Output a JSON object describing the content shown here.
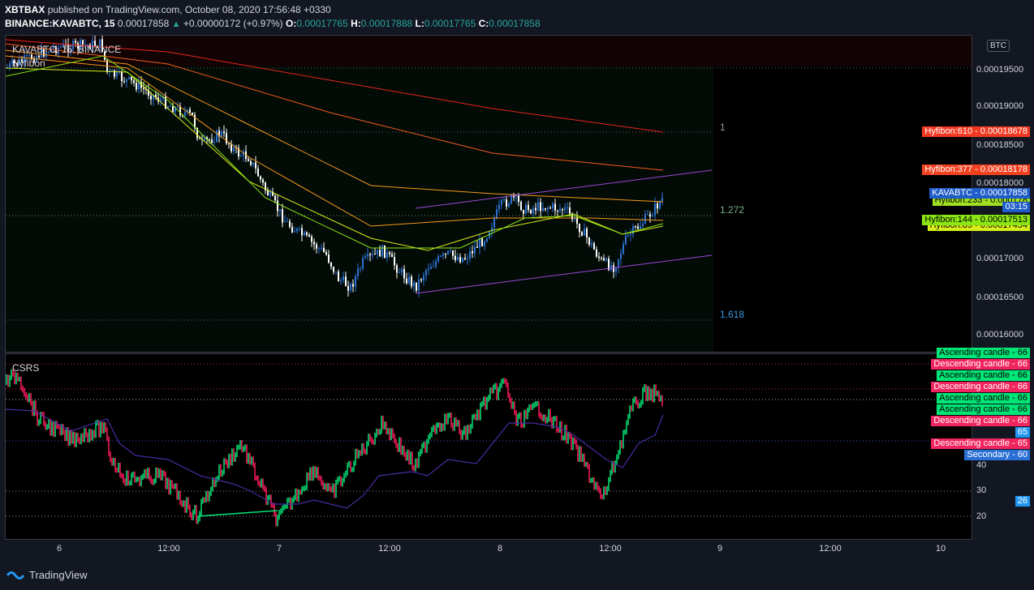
{
  "header": {
    "publisher": "XBTBAX",
    "published_text": "published on TradingView.com, October 08, 2020 17:56:48 +0330",
    "symbol": "BINANCE:KAVABTC, 15",
    "last": "0.00017858",
    "change": "+0.00000172 (+0.97%)",
    "o_label": "O:",
    "o": "0.00017765",
    "h_label": "H:",
    "h": "0.00017888",
    "l_label": "L:",
    "l": "0.00017765",
    "c_label": "C:",
    "c": "0.00017858"
  },
  "main_pane": {
    "legend_symbol": "KAVABTC, 15, BINANCE",
    "legend_indicator": "Hyfibon",
    "currency_badge": "BTC",
    "fib_levels": [
      "1",
      "1.272",
      "1.618"
    ],
    "price_ticks": [
      "0.00019500",
      "0.00019000",
      "0.00018500",
      "0.00018000",
      "0.00017000",
      "0.00016500",
      "0.00016000"
    ],
    "tags": [
      {
        "text": "Hyfibon:610 - 0.00018678",
        "bg": "#f23a22",
        "fg": "#ffffff"
      },
      {
        "text": "Hyfibon:377 - 0.00018178",
        "bg": "#f2411f",
        "fg": "#ffffff"
      },
      {
        "text": "KAVABTC - 0.00017858",
        "bg": "#1e5cc8",
        "fg": "#ffffff"
      },
      {
        "text": "03:15",
        "bg": "#1e5cc8",
        "fg": "#ffffff"
      },
      {
        "text": "Hyfibon:233 - 0.000178",
        "bg": "#a0e020",
        "fg": "#000000"
      },
      {
        "text": "Hyfibon:144 - 0.00017513",
        "bg": "#8ce614",
        "fg": "#000000"
      },
      {
        "text": "Hyfibon:89 - 0.00017454",
        "bg": "#d8ee1a",
        "fg": "#000000"
      }
    ]
  },
  "sub_pane": {
    "legend": "CSRS",
    "ticks": [
      "40",
      "30",
      "20"
    ],
    "tags": [
      {
        "text": "Ascending candle - 66",
        "bg": "#00e676",
        "fg": "#000000"
      },
      {
        "text": "Descending candle - 66",
        "bg": "#f0245e",
        "fg": "#ffffff"
      },
      {
        "text": "Ascending candle - 66",
        "bg": "#00e676",
        "fg": "#000000"
      },
      {
        "text": "Descending candle - 66",
        "bg": "#f0245e",
        "fg": "#ffffff"
      },
      {
        "text": "Ascending candle - 66",
        "bg": "#00e676",
        "fg": "#000000"
      },
      {
        "text": "Ascending candle - 66",
        "bg": "#00e676",
        "fg": "#000000"
      },
      {
        "text": "Descending candle - 66",
        "bg": "#f0245e",
        "fg": "#ffffff"
      },
      {
        "text": "65",
        "bg": "#2196f3",
        "fg": "#ffffff"
      },
      {
        "text": "Descending candle - 65",
        "bg": "#f0245e",
        "fg": "#ffffff"
      },
      {
        "text": "Secondary - 60",
        "bg": "#2a6fd6",
        "fg": "#ffffff"
      },
      {
        "text": "26",
        "bg": "#2196f3",
        "fg": "#ffffff"
      }
    ]
  },
  "x_axis": [
    "6",
    "12:00",
    "7",
    "12:00",
    "8",
    "12:00",
    "9",
    "12:00",
    "10"
  ],
  "footer": {
    "brand": "TradingView"
  },
  "colors": {
    "up_candle": "#2a72d4",
    "down_candle": "#ffffff",
    "ema_610": "#e8251c",
    "ema_377": "#f25c1c",
    "ema_233": "#f39a1c",
    "ema_144": "#8ce614",
    "ema_89": "#d8ee1a",
    "channel": "#9a4ad6",
    "rsi_up": "#00e676",
    "rsi_down": "#ff1a5e",
    "secondary": "#4a2aa0"
  }
}
